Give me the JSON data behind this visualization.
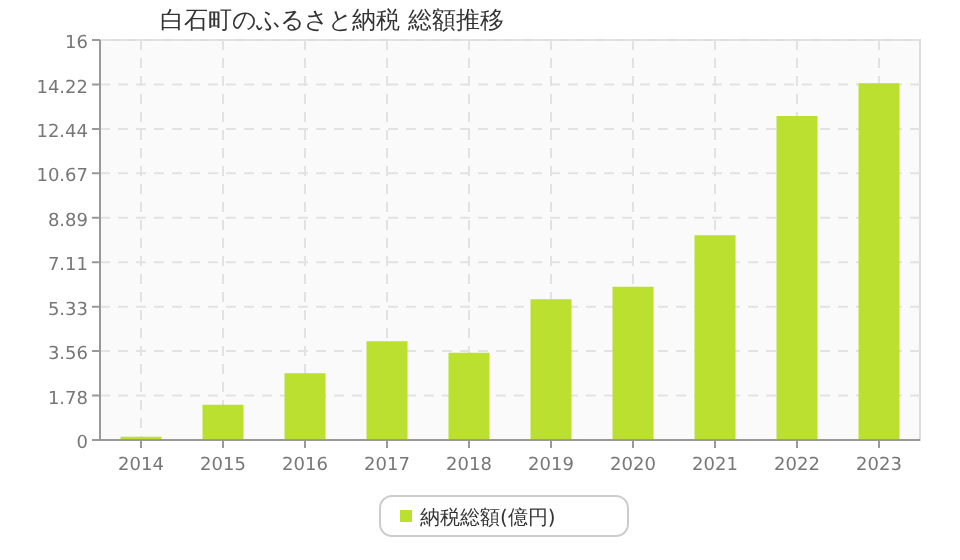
{
  "chart_data": {
    "type": "bar",
    "title": "白石町のふるさと納税 総額推移",
    "categories": [
      "2014",
      "2015",
      "2016",
      "2017",
      "2018",
      "2019",
      "2020",
      "2021",
      "2022",
      "2023"
    ],
    "series": [
      {
        "name": "納税総額(億円)",
        "color": "#bbe02f",
        "values": [
          0.13,
          1.41,
          2.67,
          3.95,
          3.49,
          5.63,
          6.13,
          8.19,
          12.96,
          14.27
        ]
      }
    ],
    "ylim": [
      0,
      16
    ],
    "yticks": [
      0,
      1.78,
      3.56,
      5.33,
      7.11,
      8.89,
      10.67,
      12.44,
      14.22,
      16
    ],
    "grid": true,
    "legend": "bottom"
  }
}
